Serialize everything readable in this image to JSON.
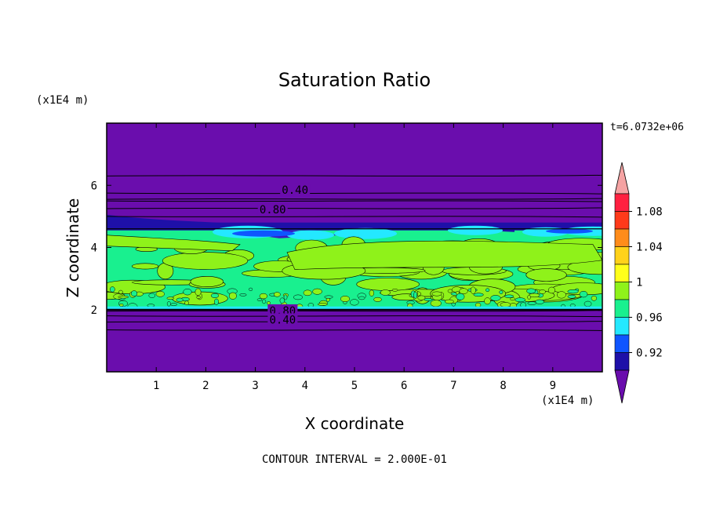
{
  "chart_data": {
    "type": "heatmap",
    "title": "Saturation Ratio",
    "xlabel": "X coordinate",
    "ylabel": "Z coordinate",
    "x_unit_label": "(x1E4 m)",
    "y_unit_label": "(x1E4 m)",
    "xlim": [
      0,
      10
    ],
    "ylim": [
      0,
      8
    ],
    "x_ticks": [
      1,
      2,
      3,
      4,
      5,
      6,
      7,
      8,
      9
    ],
    "y_ticks": [
      2,
      4,
      6
    ],
    "timestamp": "t=6.0732e+06",
    "contour_interval_text": "CONTOUR INTERVAL = 2.000E-01",
    "contour_labels": [
      "0.40",
      "0.80",
      "0.80",
      "0.40"
    ],
    "colorbar": {
      "levels": [
        0.92,
        0.96,
        1,
        1.04,
        1.08
      ],
      "tick_labels": [
        "0.92",
        "0.96",
        "1",
        "1.04",
        "1.08"
      ],
      "colors": [
        "#6a0dad",
        "#1e10a8",
        "#0f55ff",
        "#24e8ff",
        "#19f08f",
        "#8ff21a",
        "#ffff1a",
        "#ffd21a",
        "#ff8c1a",
        "#ff3a1a",
        "#ff2040",
        "#f5a3a3"
      ],
      "extend": "both"
    },
    "fields": {
      "background_color": "#6a0dad",
      "moist_layer_z_range": [
        2.0,
        4.6
      ],
      "moist_layer_dominant_values": [
        0.99,
        1.01
      ]
    }
  }
}
